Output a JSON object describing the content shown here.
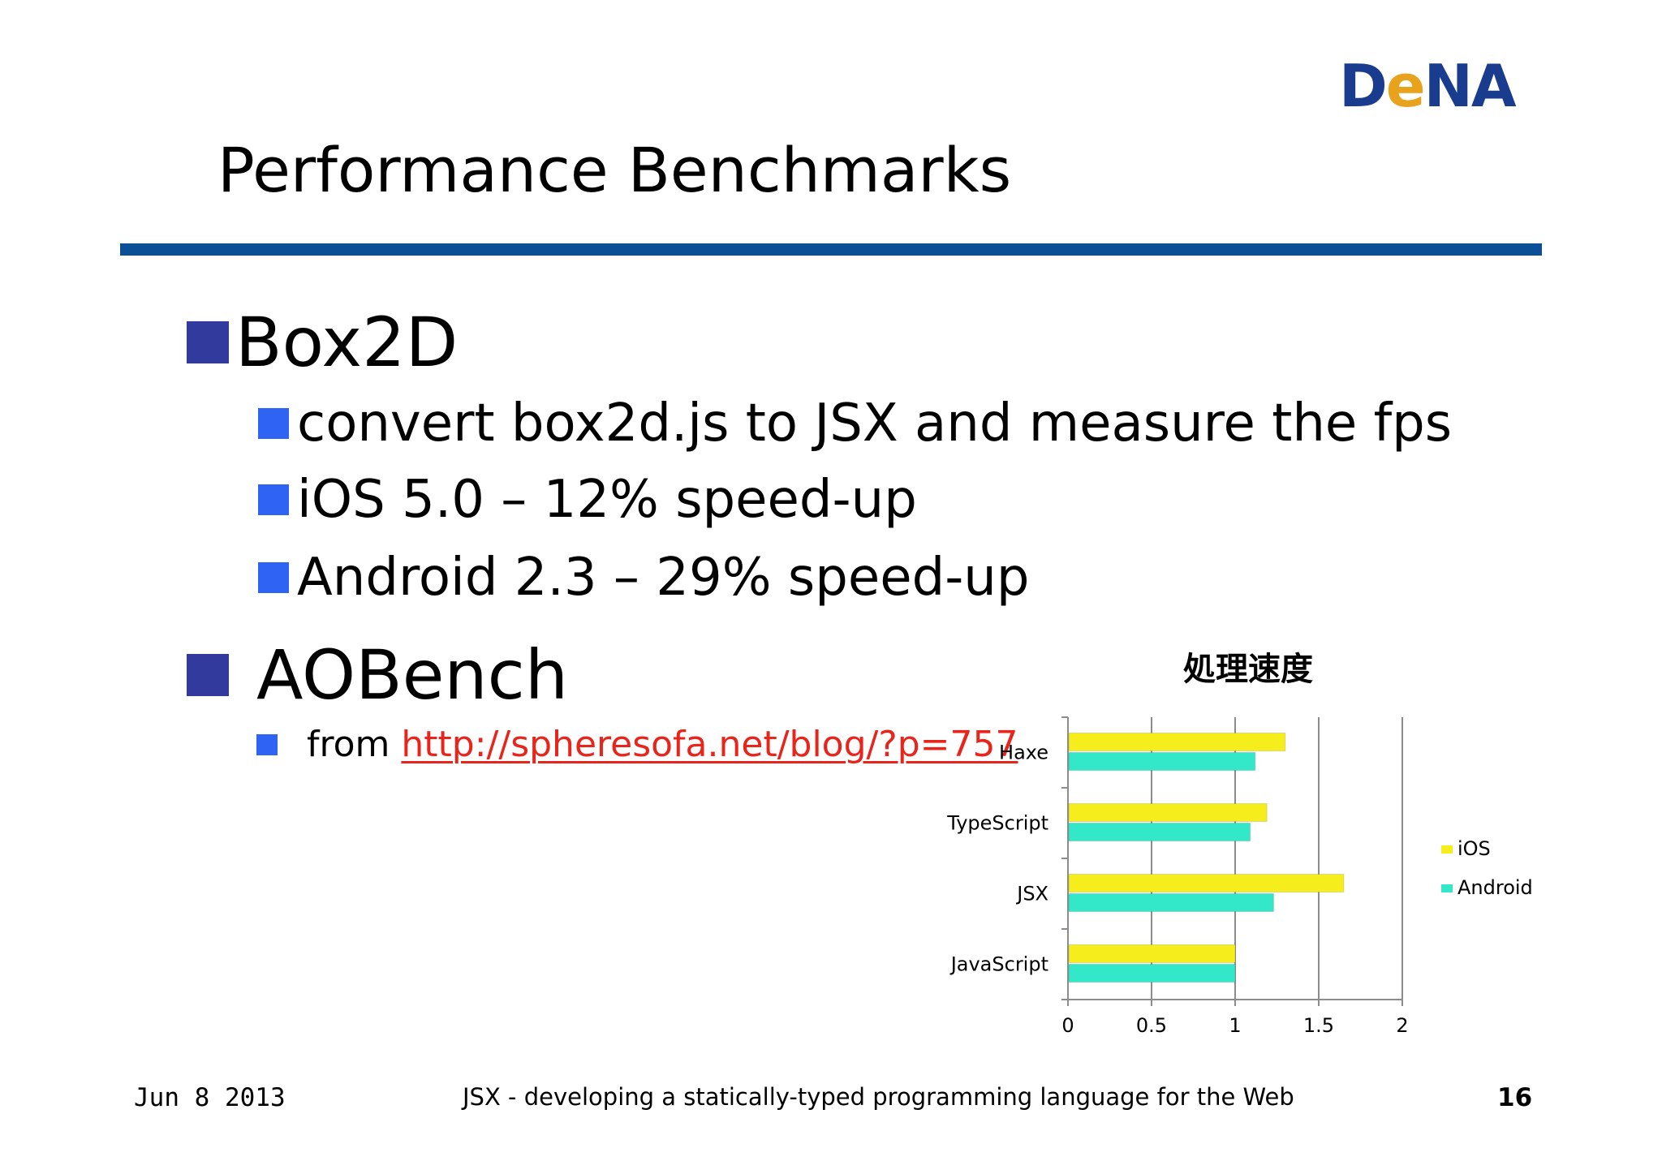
{
  "header": {
    "logo_text": "DeNA",
    "logo_part1": "D",
    "logo_part2": "e",
    "logo_part3": "NA",
    "title": "Performance Benchmarks"
  },
  "content": {
    "section1": {
      "label": "Box2D",
      "items": [
        "convert box2d.js to JSX and measure the fps",
        "iOS 5.0 – 12% speed-up",
        "Android 2.3 – 29% speed-up"
      ]
    },
    "section2": {
      "label": "AOBench",
      "source_prefix": "from ",
      "source_link": "http://spheresofa.net/blog/?p=757"
    }
  },
  "chart_data": {
    "type": "bar",
    "orientation": "horizontal",
    "title": "処理速度",
    "categories": [
      "Haxe",
      "TypeScript",
      "JSX",
      "JavaScript"
    ],
    "series": [
      {
        "name": "iOS",
        "values": [
          1.3,
          1.19,
          1.65,
          1.0
        ]
      },
      {
        "name": "Android",
        "values": [
          1.12,
          1.09,
          1.23,
          1.0
        ]
      }
    ],
    "xlim": [
      0,
      2
    ],
    "xticks": [
      "0",
      "0.5",
      "1",
      "1.5",
      "2"
    ],
    "grid": true,
    "legend": "right",
    "colors": {
      "iOS": "#f5ee1c",
      "Android": "#33e8c8"
    }
  },
  "footer": {
    "date": "Jun 8 2013",
    "caption": "JSX - developing a statically-typed programming language for the Web",
    "page_number": "16"
  },
  "colors": {
    "title_rule": "#0b4f96",
    "bullet_l1": "#323a9e",
    "bullet_l2": "#2f63f3",
    "link": "#e8241b",
    "logo_blue": "#1a3c8e",
    "logo_orange": "#e8a21b"
  }
}
